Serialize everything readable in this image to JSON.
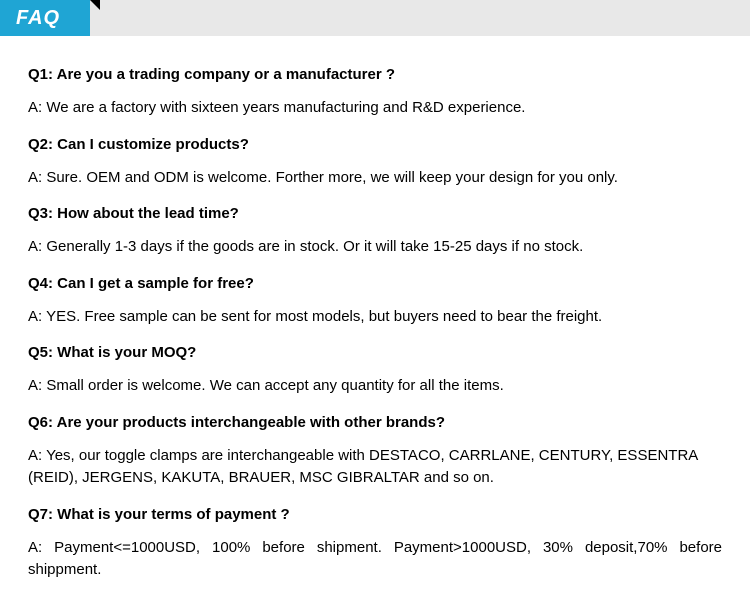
{
  "header": {
    "tabLabel": "FAQ"
  },
  "faqs": [
    {
      "question": "Q1:  Are you a trading company or a manufacturer ?",
      "answer": "A: We are a factory with sixteen years manufacturing and R&D experience."
    },
    {
      "question": "Q2: Can I customize products?",
      "answer": "A: Sure. OEM and ODM is welcome. Forther more, we will keep your design for you only."
    },
    {
      "question": "Q3: How about the lead time?",
      "answer": "A: Generally 1-3 days if the goods are in stock. Or it will take 15-25 days if no stock."
    },
    {
      "question": "Q4: Can I get a sample for free?",
      "answer": "A: YES. Free sample can be sent for most models, but buyers need to bear the freight."
    },
    {
      "question": "Q5: What is your MOQ?",
      "answer": "A: Small order is welcome. We can accept any quantity for all the items."
    },
    {
      "question": "Q6: Are your products interchangeable with other brands?",
      "answer": "A: Yes, our toggle clamps are interchangeable with DESTACO,  CARRLANE, CENTURY, ESSENTRA (REID), JERGENS, KAKUTA, BRAUER,  MSC GIBRALTAR and so on."
    },
    {
      "question": "Q7: What is your terms of payment ?",
      "answer": "A: Payment<=1000USD, 100% before shipment. Payment>1000USD, 30% deposit,70% before shippment."
    }
  ]
}
